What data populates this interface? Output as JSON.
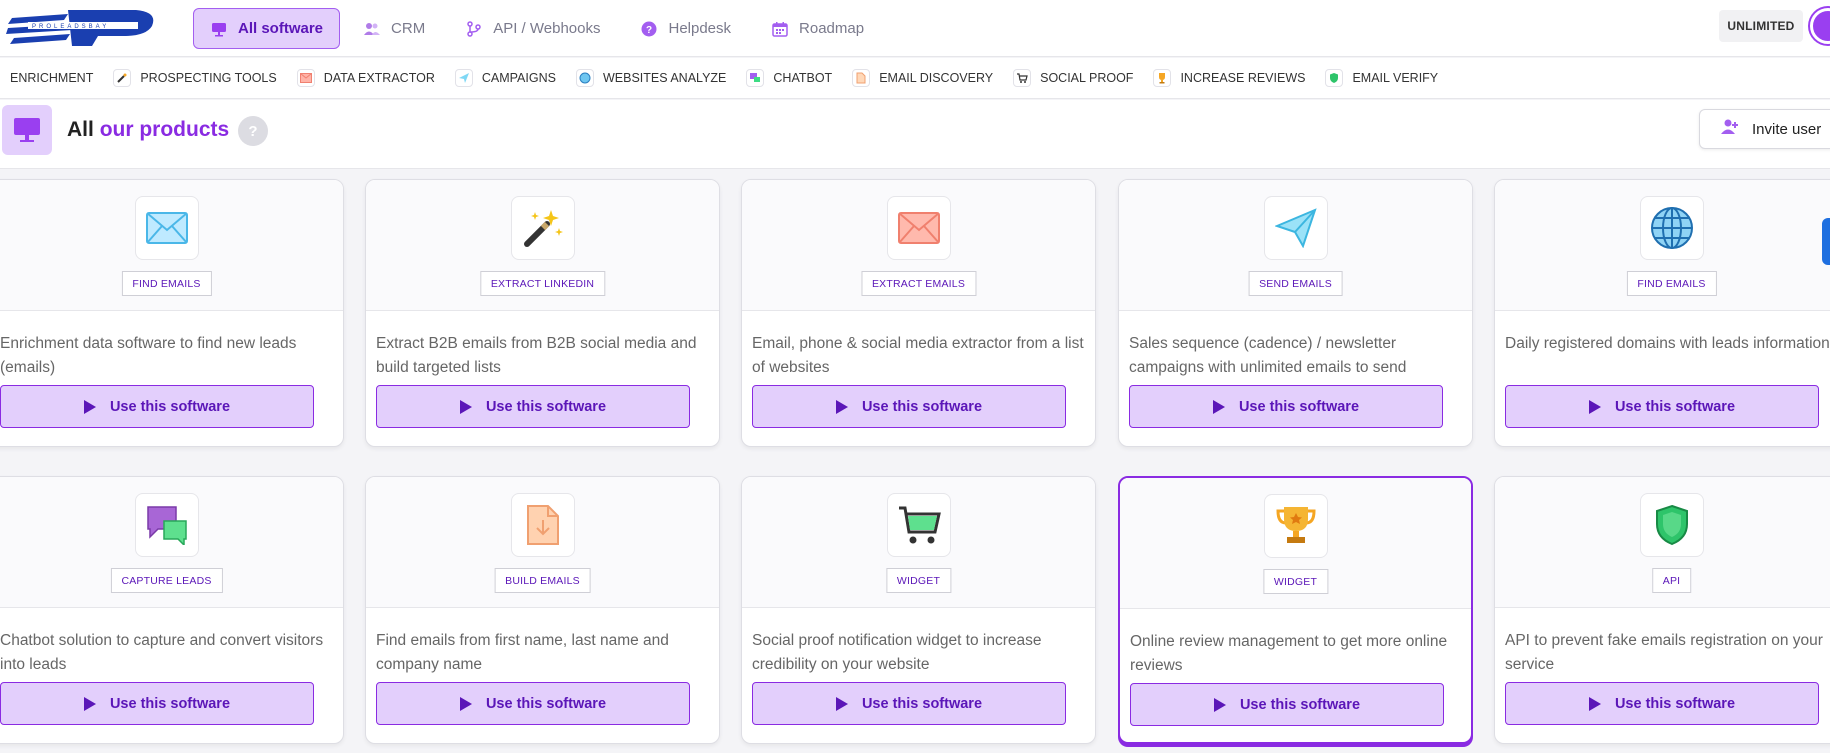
{
  "nav": [
    {
      "label": "All software",
      "icon": "monitor-icon",
      "active": true
    },
    {
      "label": "CRM",
      "icon": "users-icon",
      "active": false
    },
    {
      "label": "API / Webhooks",
      "icon": "branch-icon",
      "active": false
    },
    {
      "label": "Helpdesk",
      "icon": "question-icon",
      "active": false
    },
    {
      "label": "Roadmap",
      "icon": "calendar-icon",
      "active": false
    }
  ],
  "plan_badge": "UNLIMITED",
  "subnav": [
    {
      "label": "ENRICHMENT",
      "icon": ""
    },
    {
      "label": "PROSPECTING TOOLS",
      "icon": "magic-wand-icon"
    },
    {
      "label": "DATA EXTRACTOR",
      "icon": "envelope-icon"
    },
    {
      "label": "CAMPAIGNS",
      "icon": "paper-plane-icon"
    },
    {
      "label": "WEBSITES ANALYZE",
      "icon": "globe-icon"
    },
    {
      "label": "CHATBOT",
      "icon": "chat-icon"
    },
    {
      "label": "EMAIL DISCOVERY",
      "icon": "file-icon"
    },
    {
      "label": "SOCIAL PROOF",
      "icon": "cart-icon"
    },
    {
      "label": "INCREASE REVIEWS",
      "icon": "trophy-icon"
    },
    {
      "label": "EMAIL VERIFY",
      "icon": "shield-icon"
    }
  ],
  "header": {
    "title_prefix": "All",
    "title_accent": "our products",
    "help": "?",
    "invite_label": "Invite user"
  },
  "button_label": "Use this software",
  "cards": [
    {
      "tag": "FIND EMAILS",
      "icon": "envelope-icon",
      "desc": "Enrichment data software to find new leads (emails)"
    },
    {
      "tag": "EXTRACT LINKEDIN",
      "icon": "magic-wand-icon",
      "desc": "Extract B2B emails from B2B social media and build targeted lists"
    },
    {
      "tag": "EXTRACT EMAILS",
      "icon": "red-envelope-icon",
      "desc": "Email, phone & social media extractor from a list of websites"
    },
    {
      "tag": "SEND EMAILS",
      "icon": "paper-plane-icon",
      "desc": "Sales sequence (cadence) / newsletter campaigns with unlimited emails to send"
    },
    {
      "tag": "FIND EMAILS",
      "icon": "globe-icon",
      "desc": "Daily registered domains with leads information"
    },
    {
      "tag": "CAPTURE LEADS",
      "icon": "chat-icon",
      "desc": "Chatbot solution to capture and convert visitors into leads"
    },
    {
      "tag": "BUILD EMAILS",
      "icon": "file-download-icon",
      "desc": "Find emails from first name, last name and company name"
    },
    {
      "tag": "WIDGET",
      "icon": "cart-icon",
      "desc": "Social proof notification widget to increase credibility on your website"
    },
    {
      "tag": "WIDGET",
      "icon": "trophy-icon",
      "desc": "Online review management to get more online reviews"
    },
    {
      "tag": "API",
      "icon": "shield-icon",
      "desc": "API to prevent fake emails registration on your service"
    }
  ]
}
